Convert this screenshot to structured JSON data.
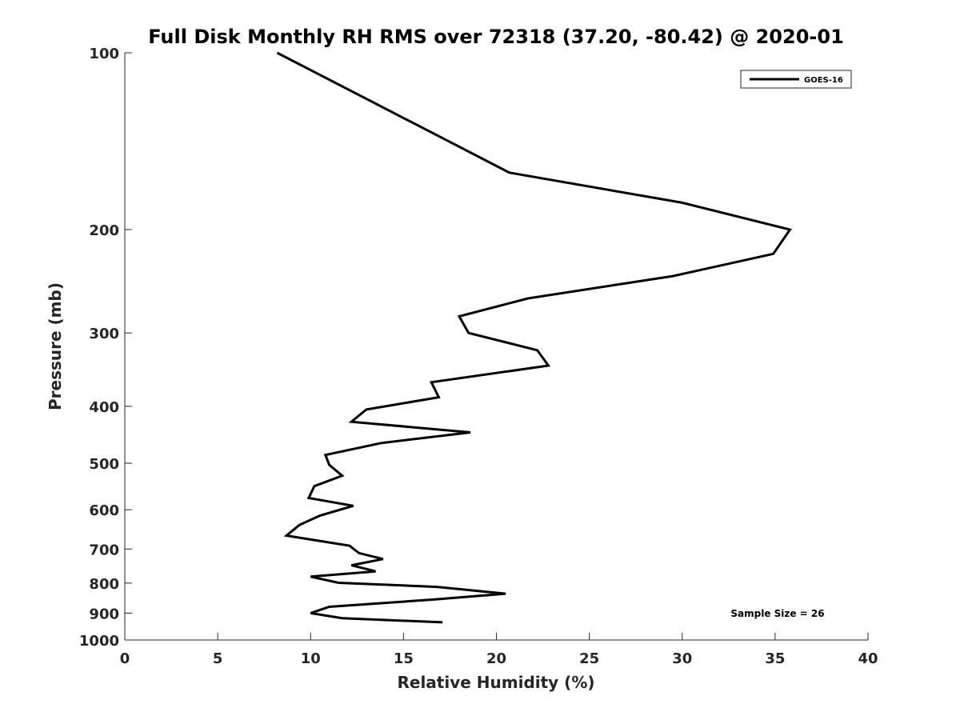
{
  "chart_data": {
    "type": "line",
    "title": "Full Disk Monthly RH RMS over 72318 (37.20, -80.42) @ 2020-01",
    "xlabel": "Relative Humidity (%)",
    "ylabel": "Pressure (mb)",
    "xlim": [
      0,
      40
    ],
    "ylim": [
      100,
      1000
    ],
    "y_scale": "log",
    "y_reversed": true,
    "grid": false,
    "legend_position": "top-right",
    "x_ticks": [
      0,
      5,
      10,
      15,
      20,
      25,
      30,
      35,
      40
    ],
    "x_tick_labels": [
      "0",
      "5",
      "10",
      "15",
      "20",
      "25",
      "30",
      "35",
      "40"
    ],
    "y_ticks": [
      100,
      200,
      300,
      400,
      500,
      600,
      700,
      800,
      900,
      1000
    ],
    "y_tick_labels": [
      "100",
      "200",
      "300",
      "400",
      "500",
      "600",
      "700",
      "800",
      "900",
      "1000"
    ],
    "series": [
      {
        "name": "GOES-16",
        "color": "#000000",
        "points": [
          {
            "x": 8.2,
            "y": 100
          },
          {
            "x": 20.7,
            "y": 160
          },
          {
            "x": 30.0,
            "y": 180
          },
          {
            "x": 35.8,
            "y": 200
          },
          {
            "x": 34.9,
            "y": 220
          },
          {
            "x": 29.5,
            "y": 240
          },
          {
            "x": 21.7,
            "y": 262
          },
          {
            "x": 18.0,
            "y": 281
          },
          {
            "x": 18.5,
            "y": 300
          },
          {
            "x": 22.2,
            "y": 321
          },
          {
            "x": 22.8,
            "y": 341
          },
          {
            "x": 16.5,
            "y": 364
          },
          {
            "x": 16.9,
            "y": 386
          },
          {
            "x": 13.0,
            "y": 405
          },
          {
            "x": 12.2,
            "y": 425
          },
          {
            "x": 18.6,
            "y": 443
          },
          {
            "x": 13.8,
            "y": 462
          },
          {
            "x": 10.8,
            "y": 484
          },
          {
            "x": 11.0,
            "y": 503
          },
          {
            "x": 11.7,
            "y": 525
          },
          {
            "x": 10.2,
            "y": 547
          },
          {
            "x": 9.9,
            "y": 573
          },
          {
            "x": 12.3,
            "y": 591
          },
          {
            "x": 10.5,
            "y": 614
          },
          {
            "x": 9.4,
            "y": 637
          },
          {
            "x": 8.7,
            "y": 664
          },
          {
            "x": 12.1,
            "y": 691
          },
          {
            "x": 12.6,
            "y": 711
          },
          {
            "x": 13.9,
            "y": 728
          },
          {
            "x": 12.2,
            "y": 746
          },
          {
            "x": 13.5,
            "y": 764
          },
          {
            "x": 10.0,
            "y": 780
          },
          {
            "x": 11.5,
            "y": 799
          },
          {
            "x": 16.8,
            "y": 812
          },
          {
            "x": 20.5,
            "y": 834
          },
          {
            "x": 16.7,
            "y": 853
          },
          {
            "x": 11.0,
            "y": 878
          },
          {
            "x": 10.0,
            "y": 900
          },
          {
            "x": 11.7,
            "y": 918
          },
          {
            "x": 17.1,
            "y": 933
          }
        ]
      }
    ],
    "legend": {
      "entries": [
        "GOES-16"
      ]
    },
    "annotation": "Sample Size = 26"
  }
}
